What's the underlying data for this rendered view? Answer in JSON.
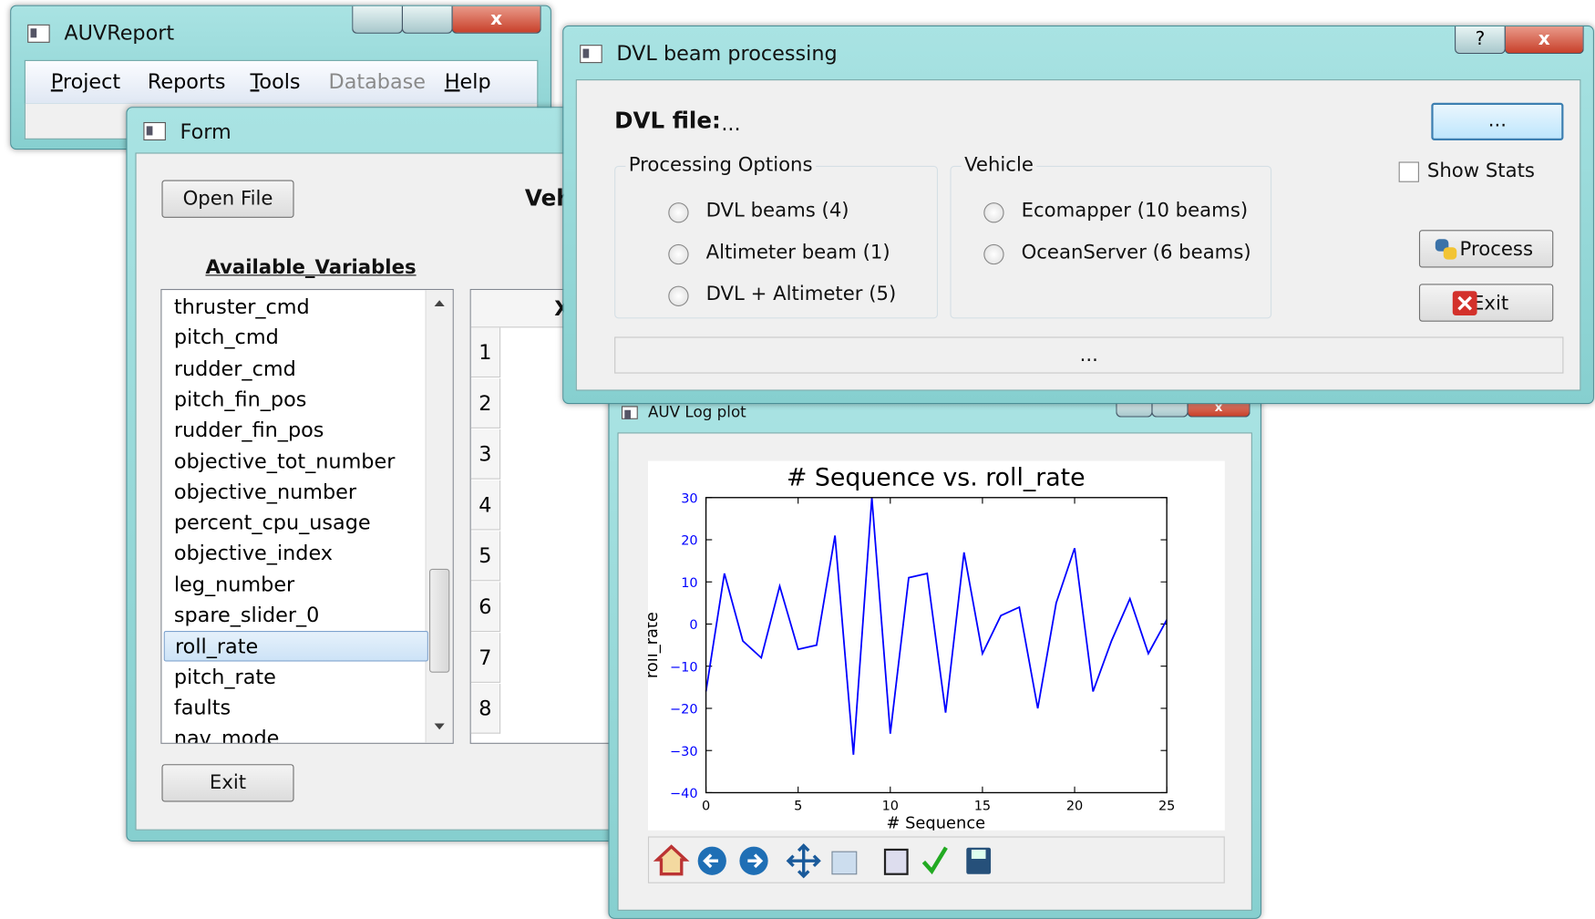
{
  "windows": {
    "main": {
      "title": "AUVReport",
      "menu": [
        "Project",
        "Reports",
        "Tools",
        "Database",
        "Help"
      ]
    },
    "form": {
      "title": "Form",
      "open_button": "Open File",
      "heading": "Veh",
      "list_title": "Available_Variables",
      "variables": [
        "thruster_cmd",
        "pitch_cmd",
        "rudder_cmd",
        "pitch_fin_pos",
        "rudder_fin_pos",
        "objective_tot_number",
        "objective_number",
        "percent_cpu_usage",
        "objective_index",
        "leg_number",
        "spare_slider_0",
        "roll_rate",
        "pitch_rate",
        "faults",
        "nav_mode"
      ],
      "selected_variable": "roll_rate",
      "column_header": "X",
      "row_numbers": [
        "1",
        "2",
        "3",
        "4",
        "5",
        "6",
        "7",
        "8"
      ],
      "exit_button": "Exit"
    },
    "dvl": {
      "title": "DVL beam processing",
      "file_label": "DVL file:",
      "file_value": "...",
      "browse_button": "...",
      "show_stats": "Show Stats",
      "processing_group": "Processing Options",
      "processing_options": [
        "DVL beams (4)",
        "Altimeter beam (1)",
        "DVL + Altimeter (5)"
      ],
      "vehicle_group": "Vehicle",
      "vehicle_options": [
        "Ecomapper (10 beams)",
        "OceanServer (6 beams)"
      ],
      "process_button": "Process",
      "exit_button": "Exit",
      "status": "..."
    },
    "plot": {
      "title": "AUV Log plot"
    }
  },
  "chart_data": {
    "type": "line",
    "title": "# Sequence vs.  roll_rate",
    "x_label": "# Sequence",
    "y_label": "roll_rate",
    "x": [
      0,
      1,
      2,
      3,
      4,
      5,
      6,
      7,
      8,
      9,
      10,
      11,
      12,
      13,
      14,
      15,
      16,
      17,
      18,
      19,
      20,
      21,
      22,
      23,
      24,
      25
    ],
    "values": [
      -16,
      12,
      -4,
      -8,
      9,
      -6,
      -5,
      21,
      -31,
      30,
      -26,
      11,
      12,
      -21,
      17,
      -7,
      2,
      4,
      -20,
      5,
      18,
      -16,
      -4,
      6,
      -7,
      1
    ],
    "color": "#0000ff",
    "tick_label_color": "#0000ff",
    "xlim": [
      0,
      25
    ],
    "xticks": [
      0,
      5,
      10,
      15,
      20,
      25
    ],
    "ylim": [
      -40,
      30
    ],
    "yticks": [
      {
        "value": -40,
        "label": "−40"
      },
      {
        "value": -30,
        "label": "−30"
      },
      {
        "value": -20,
        "label": "−20"
      },
      {
        "value": -10,
        "label": "−10"
      },
      0,
      10,
      20,
      30
    ]
  }
}
